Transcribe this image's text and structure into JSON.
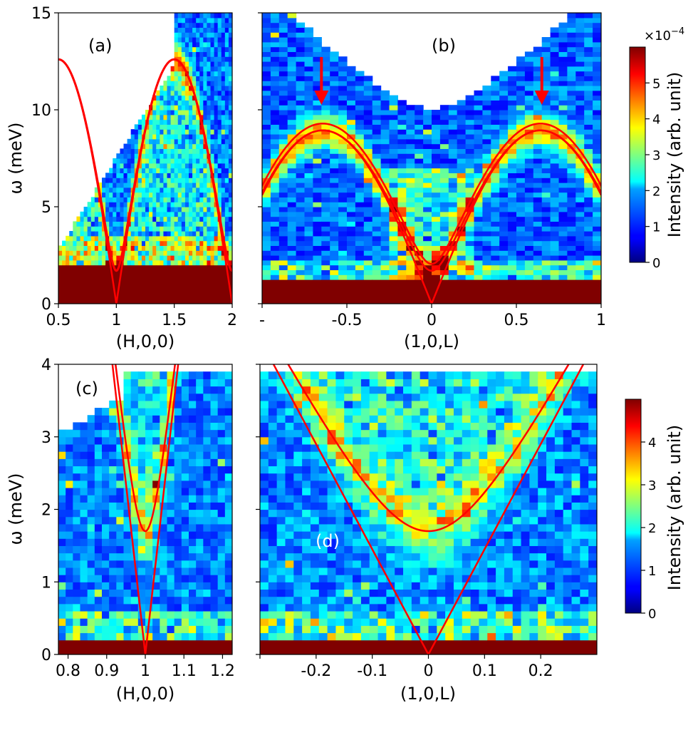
{
  "chart_data": [
    {
      "panel": "(a)",
      "type": "heatmap",
      "xlabel": "(H,0,0)",
      "ylabel": "ω (meV)",
      "xlim": [
        0.5,
        2.0
      ],
      "ylim": [
        0,
        15
      ],
      "xticks": [
        0.5,
        1,
        1.5,
        2
      ],
      "xtick_labels": [
        "0.5",
        "1",
        "1.5",
        "2"
      ],
      "yticks": [
        0,
        5,
        10,
        15
      ],
      "ytick_labels": [
        "0",
        "5",
        "10",
        "15"
      ],
      "colormap": "jet",
      "color_range": [
        0,
        0.0006
      ],
      "dispersion_center": 1.0,
      "dispersion_top_meV": 12.6,
      "dispersion_gap_meV": 1.7,
      "annotation_color": "#ff0000"
    },
    {
      "panel": "(b)",
      "type": "heatmap",
      "xlabel": "(1,0,L)",
      "ylabel": "",
      "xlim": [
        -1.0,
        1.0
      ],
      "ylim": [
        0,
        15
      ],
      "xticks": [
        -1,
        -0.5,
        0,
        0.5,
        1
      ],
      "xtick_labels": [
        "-",
        "-0.5",
        "0",
        "0.5",
        "1"
      ],
      "colormap": "jet",
      "color_range": [
        0,
        0.0006
      ],
      "dispersion_top_meV": 9.0,
      "dispersion_gap_meV": 1.7,
      "arrows_at_L": [
        -0.65,
        0.65
      ],
      "annotation_color": "#ff0000"
    },
    {
      "panel": "(c)",
      "type": "heatmap",
      "xlabel": "(H,0,0)",
      "ylabel": "ω (meV)",
      "xlim": [
        0.775,
        1.225
      ],
      "ylim": [
        0,
        4
      ],
      "xticks": [
        0.8,
        0.9,
        1.0,
        1.1,
        1.2
      ],
      "xtick_labels": [
        "0.8",
        "0.9",
        "1",
        "1.1",
        "1.2"
      ],
      "yticks": [
        0,
        1,
        2,
        3,
        4
      ],
      "ytick_labels": [
        "0",
        "1",
        "2",
        "3",
        "4"
      ],
      "colormap": "jet",
      "color_range": [
        0,
        5
      ],
      "dispersion_gap_meV": 1.7,
      "annotation_color": "#ff0000"
    },
    {
      "panel": "(d)",
      "type": "heatmap",
      "xlabel": "(1,0,L)",
      "ylabel": "",
      "xlim": [
        -0.3,
        0.3
      ],
      "ylim": [
        0,
        4
      ],
      "xticks": [
        -0.3,
        -0.2,
        -0.1,
        0,
        0.1,
        0.2
      ],
      "xtick_labels": [
        "",
        "-0.2",
        "-0.1",
        "0",
        "0.1",
        "0.2"
      ],
      "colormap": "jet",
      "color_range": [
        0,
        5
      ],
      "dispersion_gap_meV": 1.7,
      "annotation_color": "#ff0000"
    }
  ],
  "colorbars": [
    {
      "label": "Intensity (arb. unit)",
      "multiplier": "×10",
      "exponent": "−4",
      "range": [
        0,
        6
      ],
      "ticks": [
        0,
        1,
        2,
        3,
        4,
        5
      ],
      "tick_labels": [
        "0",
        "1",
        "2",
        "3",
        "4",
        "5"
      ]
    },
    {
      "label": "Intensity (arb. unit)",
      "range": [
        0,
        5
      ],
      "ticks": [
        0,
        1,
        2,
        3,
        4
      ],
      "tick_labels": [
        "0",
        "1",
        "2",
        "3",
        "4"
      ]
    }
  ]
}
